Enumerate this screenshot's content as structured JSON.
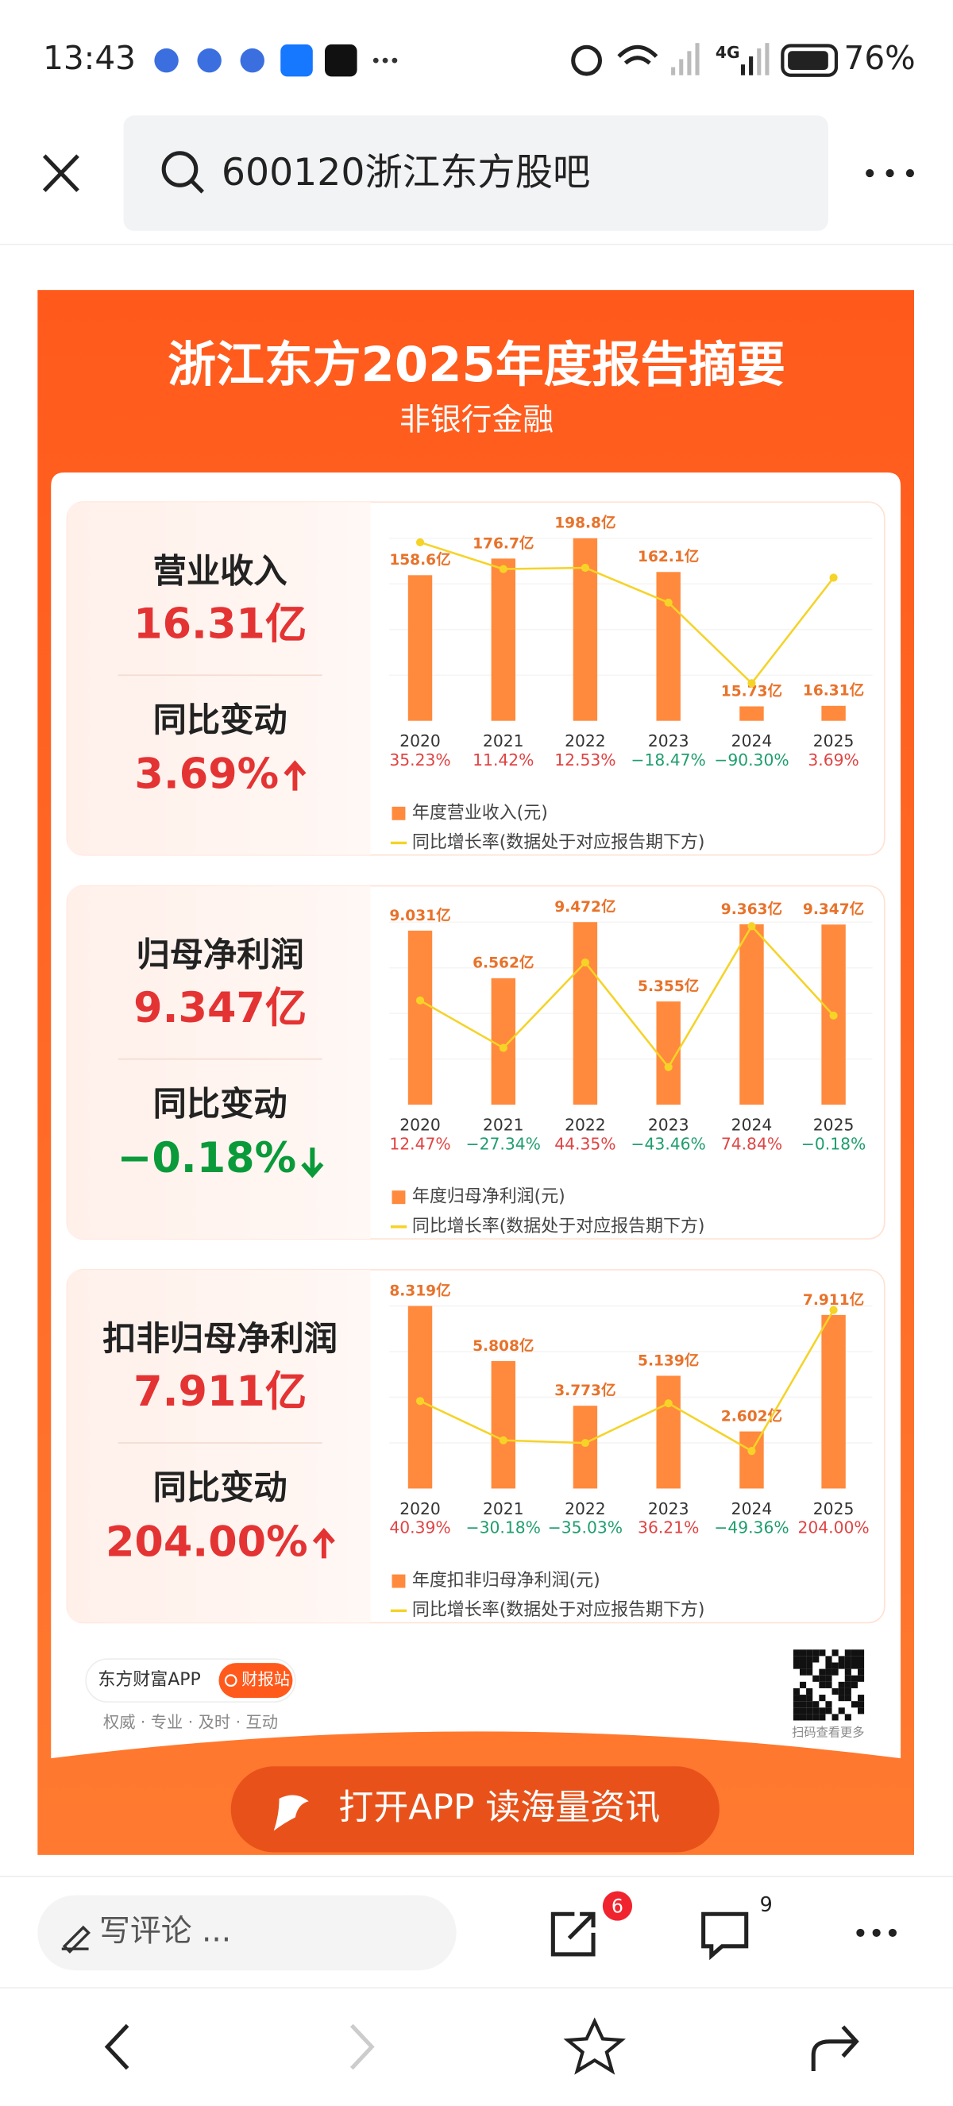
{
  "status_bar": {
    "time": "13:43",
    "network": "4G",
    "battery": "76%"
  },
  "search": {
    "query": "600120浙江东方股吧"
  },
  "report": {
    "title": "浙江东方2025年度报告摘要",
    "subtitle": "非银行金融",
    "panels": [
      {
        "metric": "营业收入",
        "value": "16.31亿",
        "change_label": "同比变动",
        "change": "3.69%"
      },
      {
        "metric": "归母净利润",
        "value": "9.347亿",
        "change_label": "同比变动",
        "change": "−0.18%"
      },
      {
        "metric": "扣非归母净利润",
        "value": "7.911亿",
        "change_label": "同比变动",
        "change": "204.00%"
      }
    ],
    "brand": "东方财富APP",
    "badge": "财报站",
    "slogan": "权威 · 专业 · 及时 · 互动",
    "qr_caption": "扫码查看更多",
    "cta": "打开APP 读海量资讯"
  },
  "chart_data": [
    {
      "type": "bar",
      "categories": [
        "2020",
        "2021",
        "2022",
        "2023",
        "2024",
        "2025"
      ],
      "series": [
        {
          "name": "年度营业收入(元)",
          "color": "#ff8a3d",
          "values": [
            158.6,
            176.7,
            198.8,
            162.1,
            15.73,
            16.31
          ],
          "value_labels": [
            "158.6亿",
            "176.7亿",
            "198.8亿",
            "162.1亿",
            "15.73亿",
            "16.31亿"
          ]
        },
        {
          "name": "同比增长率(数据处于对应报告期下方)",
          "type": "line",
          "color": "#f5d327",
          "values": [
            35.23,
            11.42,
            12.53,
            -18.47,
            -90.3,
            3.69
          ],
          "value_labels": [
            "35.23%",
            "11.42%",
            "12.53%",
            "−18.47%",
            "−90.30%",
            "3.69%"
          ]
        }
      ]
    },
    {
      "type": "bar",
      "categories": [
        "2020",
        "2021",
        "2022",
        "2023",
        "2024",
        "2025"
      ],
      "series": [
        {
          "name": "年度归母净利润(元)",
          "color": "#ff8a3d",
          "values": [
            9.031,
            6.562,
            9.472,
            5.355,
            9.363,
            9.347
          ],
          "value_labels": [
            "9.031亿",
            "6.562亿",
            "9.472亿",
            "5.355亿",
            "9.363亿",
            "9.347亿"
          ]
        },
        {
          "name": "同比增长率(数据处于对应报告期下方)",
          "type": "line",
          "color": "#f5d327",
          "values": [
            12.47,
            -27.34,
            44.35,
            -43.46,
            74.84,
            -0.18
          ],
          "value_labels": [
            "12.47%",
            "−27.34%",
            "44.35%",
            "−43.46%",
            "74.84%",
            "−0.18%"
          ]
        }
      ]
    },
    {
      "type": "bar",
      "categories": [
        "2020",
        "2021",
        "2022",
        "2023",
        "2024",
        "2025"
      ],
      "series": [
        {
          "name": "年度扣非归母净利润(元)",
          "color": "#ff8a3d",
          "values": [
            8.319,
            5.808,
            3.773,
            5.139,
            2.602,
            7.911
          ],
          "value_labels": [
            "8.319亿",
            "5.808亿",
            "3.773亿",
            "5.139亿",
            "2.602亿",
            "7.911亿"
          ]
        },
        {
          "name": "同比增长率(数据处于对应报告期下方)",
          "type": "line",
          "color": "#f5d327",
          "values": [
            40.39,
            -30.18,
            -35.03,
            36.21,
            -49.36,
            204.0
          ],
          "value_labels": [
            "40.39%",
            "−30.18%",
            "−35.03%",
            "36.21%",
            "−49.36%",
            "204.00%"
          ]
        }
      ]
    }
  ],
  "bottom_bar": {
    "comment_placeholder": "写评论 ...",
    "share_count": "6",
    "comment_count": "9"
  }
}
